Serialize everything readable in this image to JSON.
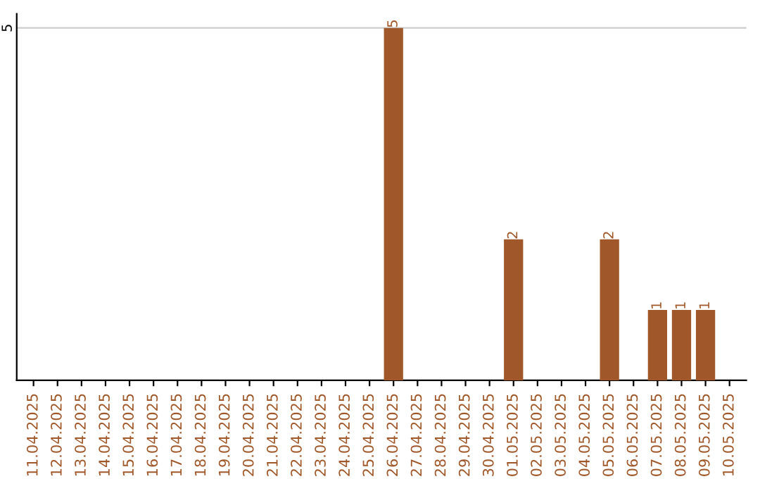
{
  "chart_data": {
    "type": "bar",
    "categories": [
      "11.04.2025",
      "12.04.2025",
      "13.04.2025",
      "14.04.2025",
      "15.04.2025",
      "16.04.2025",
      "17.04.2025",
      "18.04.2025",
      "19.04.2025",
      "20.04.2025",
      "21.04.2025",
      "22.04.2025",
      "23.04.2025",
      "24.04.2025",
      "25.04.2025",
      "26.04.2025",
      "27.04.2025",
      "28.04.2025",
      "29.04.2025",
      "30.04.2025",
      "01.05.2025",
      "02.05.2025",
      "03.05.2025",
      "04.05.2025",
      "05.05.2025",
      "06.05.2025",
      "07.05.2025",
      "08.05.2025",
      "09.05.2025",
      "10.05.2025"
    ],
    "values": [
      null,
      null,
      null,
      null,
      null,
      null,
      null,
      null,
      null,
      null,
      null,
      null,
      null,
      null,
      null,
      5,
      null,
      null,
      null,
      null,
      2,
      null,
      null,
      null,
      2,
      null,
      1,
      1,
      1,
      null
    ],
    "value_labels": [
      null,
      null,
      null,
      null,
      null,
      null,
      null,
      null,
      null,
      null,
      null,
      null,
      null,
      null,
      null,
      "5",
      null,
      null,
      null,
      null,
      "2",
      null,
      null,
      null,
      "2",
      null,
      "1",
      "1",
      "1",
      null
    ],
    "color": "#a0582a",
    "ref_lines": [
      {
        "axis": "y",
        "value": 5,
        "label": "5",
        "color": "#cccccc"
      }
    ]
  }
}
